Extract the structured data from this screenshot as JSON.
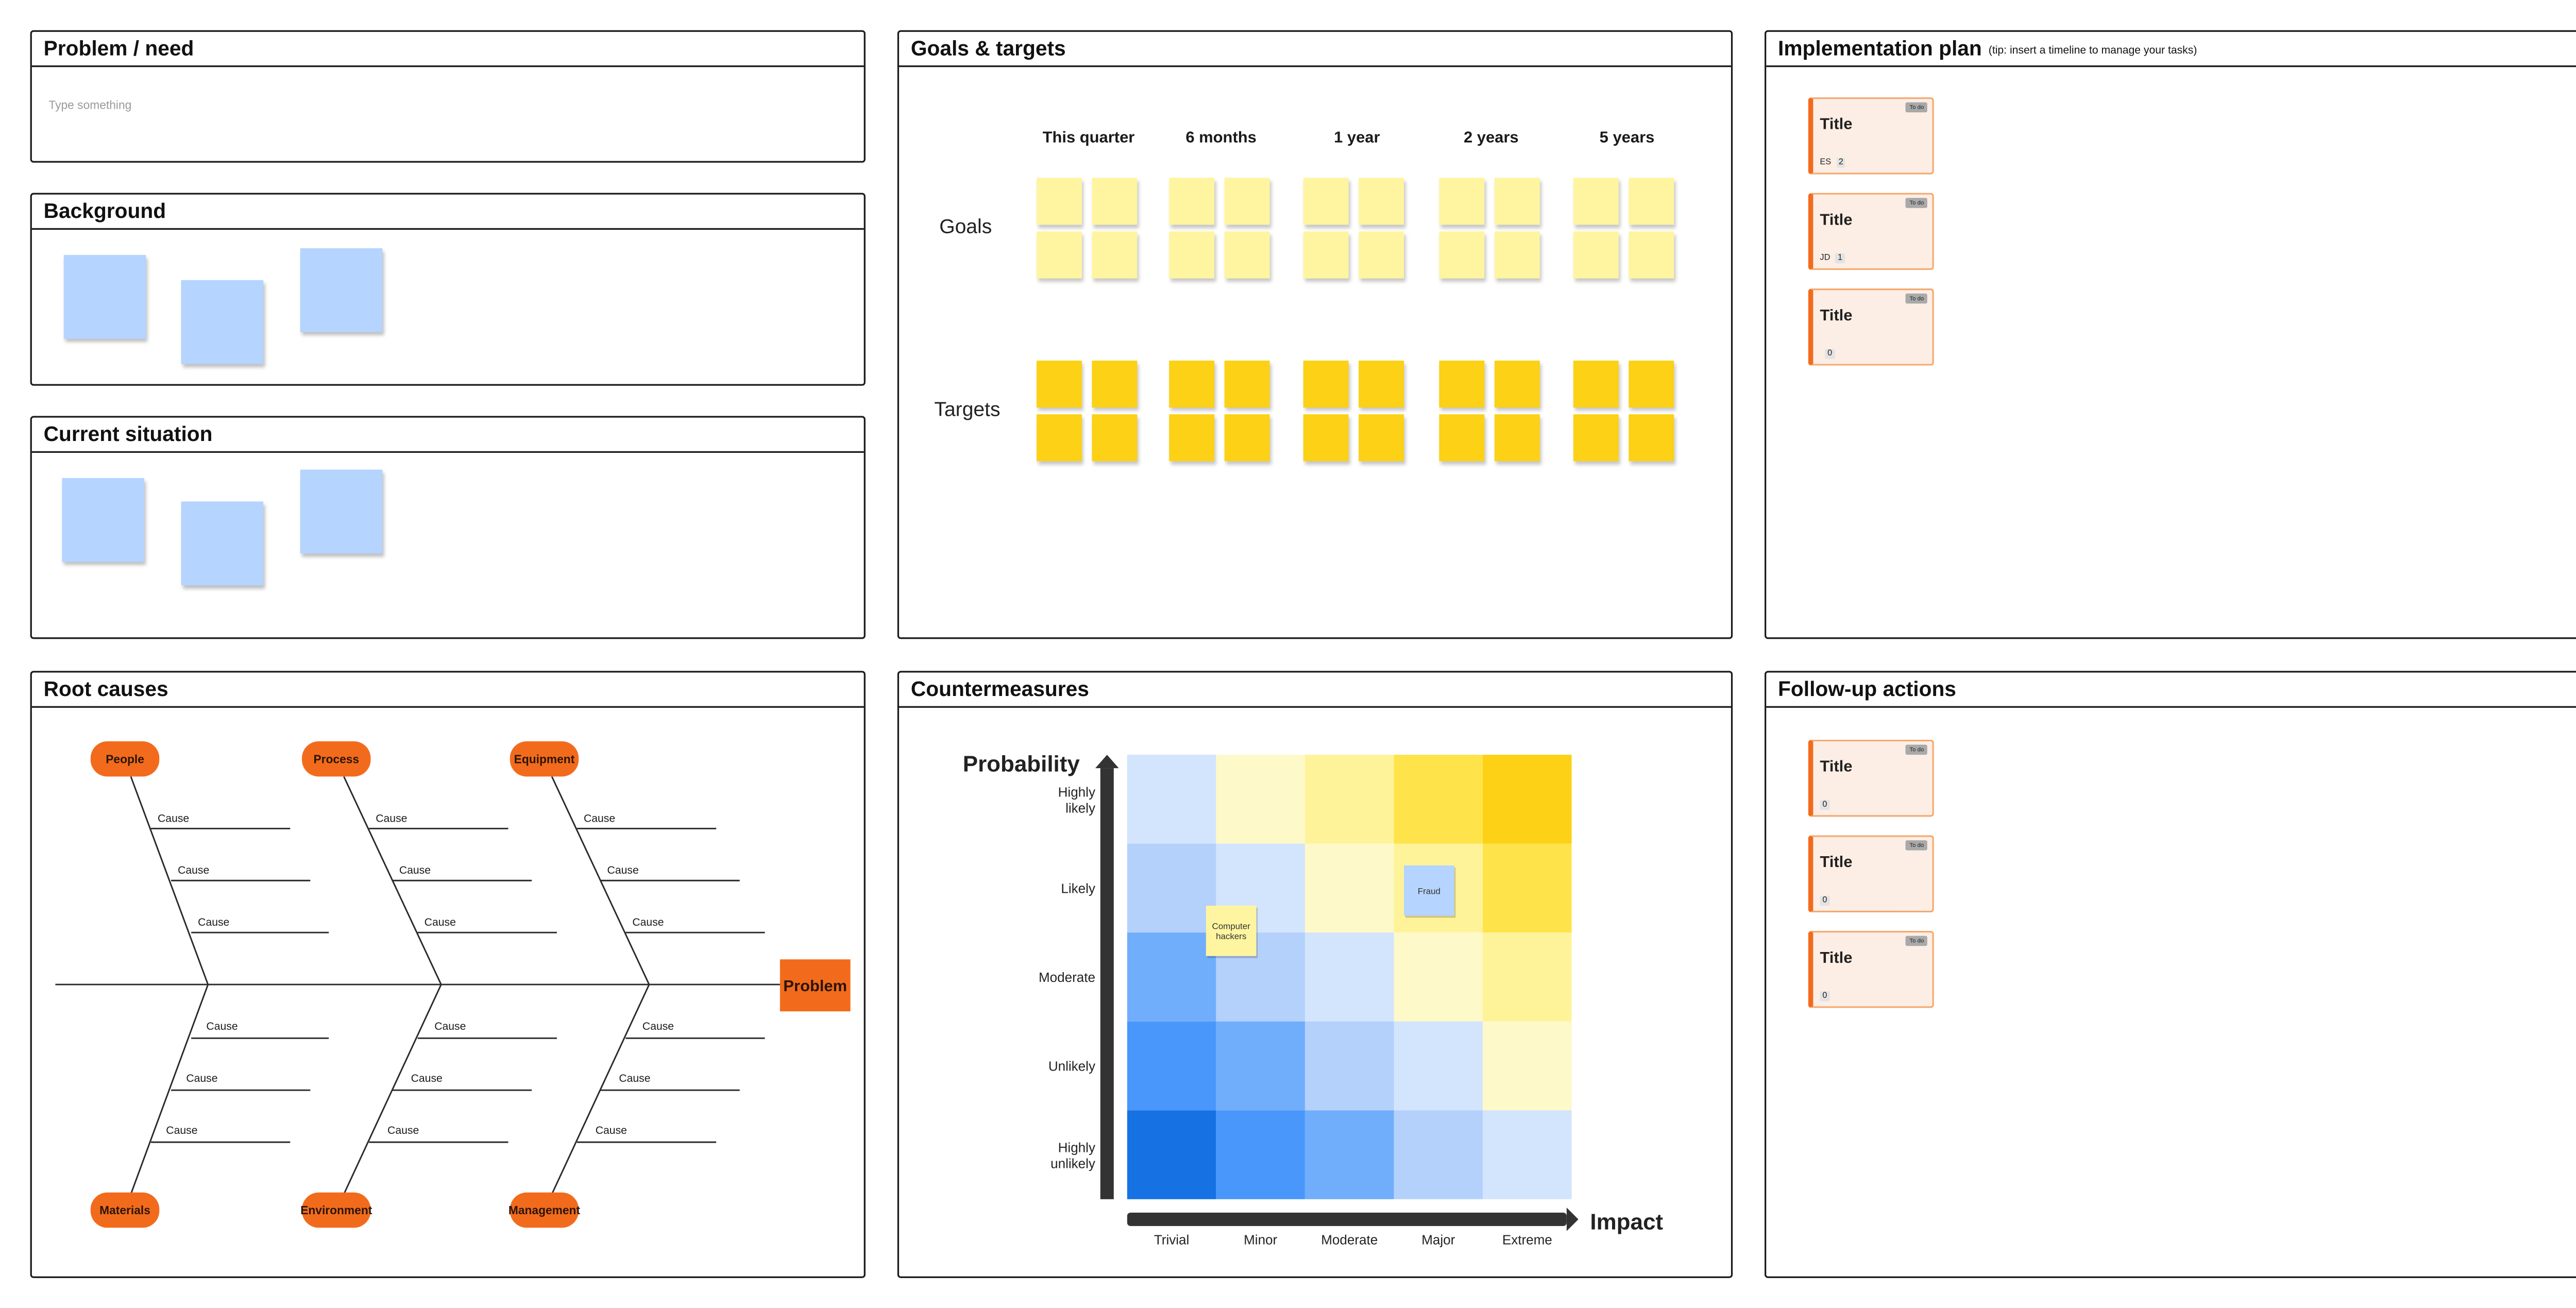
{
  "panels": {
    "problem": {
      "title": "Problem / need",
      "placeholder": "Type something"
    },
    "background": {
      "title": "Background"
    },
    "current": {
      "title": "Current situation"
    },
    "goals": {
      "title": "Goals & targets",
      "columns": [
        "This quarter",
        "6 months",
        "1 year",
        "2 years",
        "5 years"
      ],
      "rows": [
        "Goals",
        "Targets"
      ]
    },
    "implementation": {
      "title": "Implementation plan",
      "tip": "(tip: insert a timeline to manage your tasks)",
      "cards": [
        {
          "title": "Title",
          "badge": "To do",
          "assignee": "ES",
          "count": "2"
        },
        {
          "title": "Title",
          "badge": "To do",
          "assignee": "JD",
          "count": "1"
        },
        {
          "title": "Title",
          "badge": "To do",
          "assignee": "",
          "count": "0"
        }
      ]
    },
    "root_causes": {
      "title": "Root causes",
      "top_categories": [
        "People",
        "Process",
        "Equipment"
      ],
      "bottom_categories": [
        "Materials",
        "Environment",
        "Management"
      ],
      "cause_label": "Cause",
      "head": "Problem"
    },
    "countermeasures": {
      "title": "Countermeasures",
      "y_axis_label": "Probability",
      "x_axis_label": "Impact",
      "probability_levels": [
        "Highly likely",
        "Likely",
        "Moderate",
        "Unlikely",
        "Highly unlikely"
      ],
      "impact_levels": [
        "Trivial",
        "Minor",
        "Moderate",
        "Major",
        "Extreme"
      ],
      "notes": [
        {
          "text": "Fraud",
          "impact": "Major",
          "probability": "Likely",
          "color": "#b5d4ff"
        },
        {
          "text": "Computer hackers",
          "impact": "Minor",
          "probability": "Likely",
          "color": "#fff5a0"
        }
      ]
    },
    "followup": {
      "title": "Follow-up actions",
      "cards": [
        {
          "title": "Title",
          "badge": "To do",
          "assignee": "",
          "count": "0"
        },
        {
          "title": "Title",
          "badge": "To do",
          "assignee": "",
          "count": "0"
        },
        {
          "title": "Title",
          "badge": "To do",
          "assignee": "",
          "count": "0"
        }
      ]
    }
  },
  "colors": {
    "accent_orange": "#f26b1c",
    "sticky_blue": "#b5d4ff",
    "sticky_light_yellow": "#fff5a0",
    "sticky_yellow": "#fcd116",
    "card_fill": "#fdeee5"
  },
  "chart_data": {
    "type": "heatmap",
    "title": "",
    "xlabel": "Impact",
    "ylabel": "Probability",
    "x_categories": [
      "Trivial",
      "Minor",
      "Moderate",
      "Major",
      "Extreme"
    ],
    "y_categories": [
      "Highly likely",
      "Likely",
      "Moderate",
      "Unlikely",
      "Highly unlikely"
    ],
    "cell_colors": [
      [
        "#d3e4fd",
        "#fdf9c9",
        "#fff39a",
        "#ffe34a",
        "#fcd116"
      ],
      [
        "#b3d1fb",
        "#d3e4fd",
        "#fdf9c9",
        "#fff39a",
        "#ffe34a"
      ],
      [
        "#70aefc",
        "#b3d1fb",
        "#d3e4fd",
        "#fdf9c9",
        "#fff39a"
      ],
      [
        "#4a97fb",
        "#70aefc",
        "#b3d1fb",
        "#d3e4fd",
        "#fdf9c9"
      ],
      [
        "#1671e3",
        "#4a97fb",
        "#70aefc",
        "#b3d1fb",
        "#d3e4fd"
      ]
    ]
  }
}
